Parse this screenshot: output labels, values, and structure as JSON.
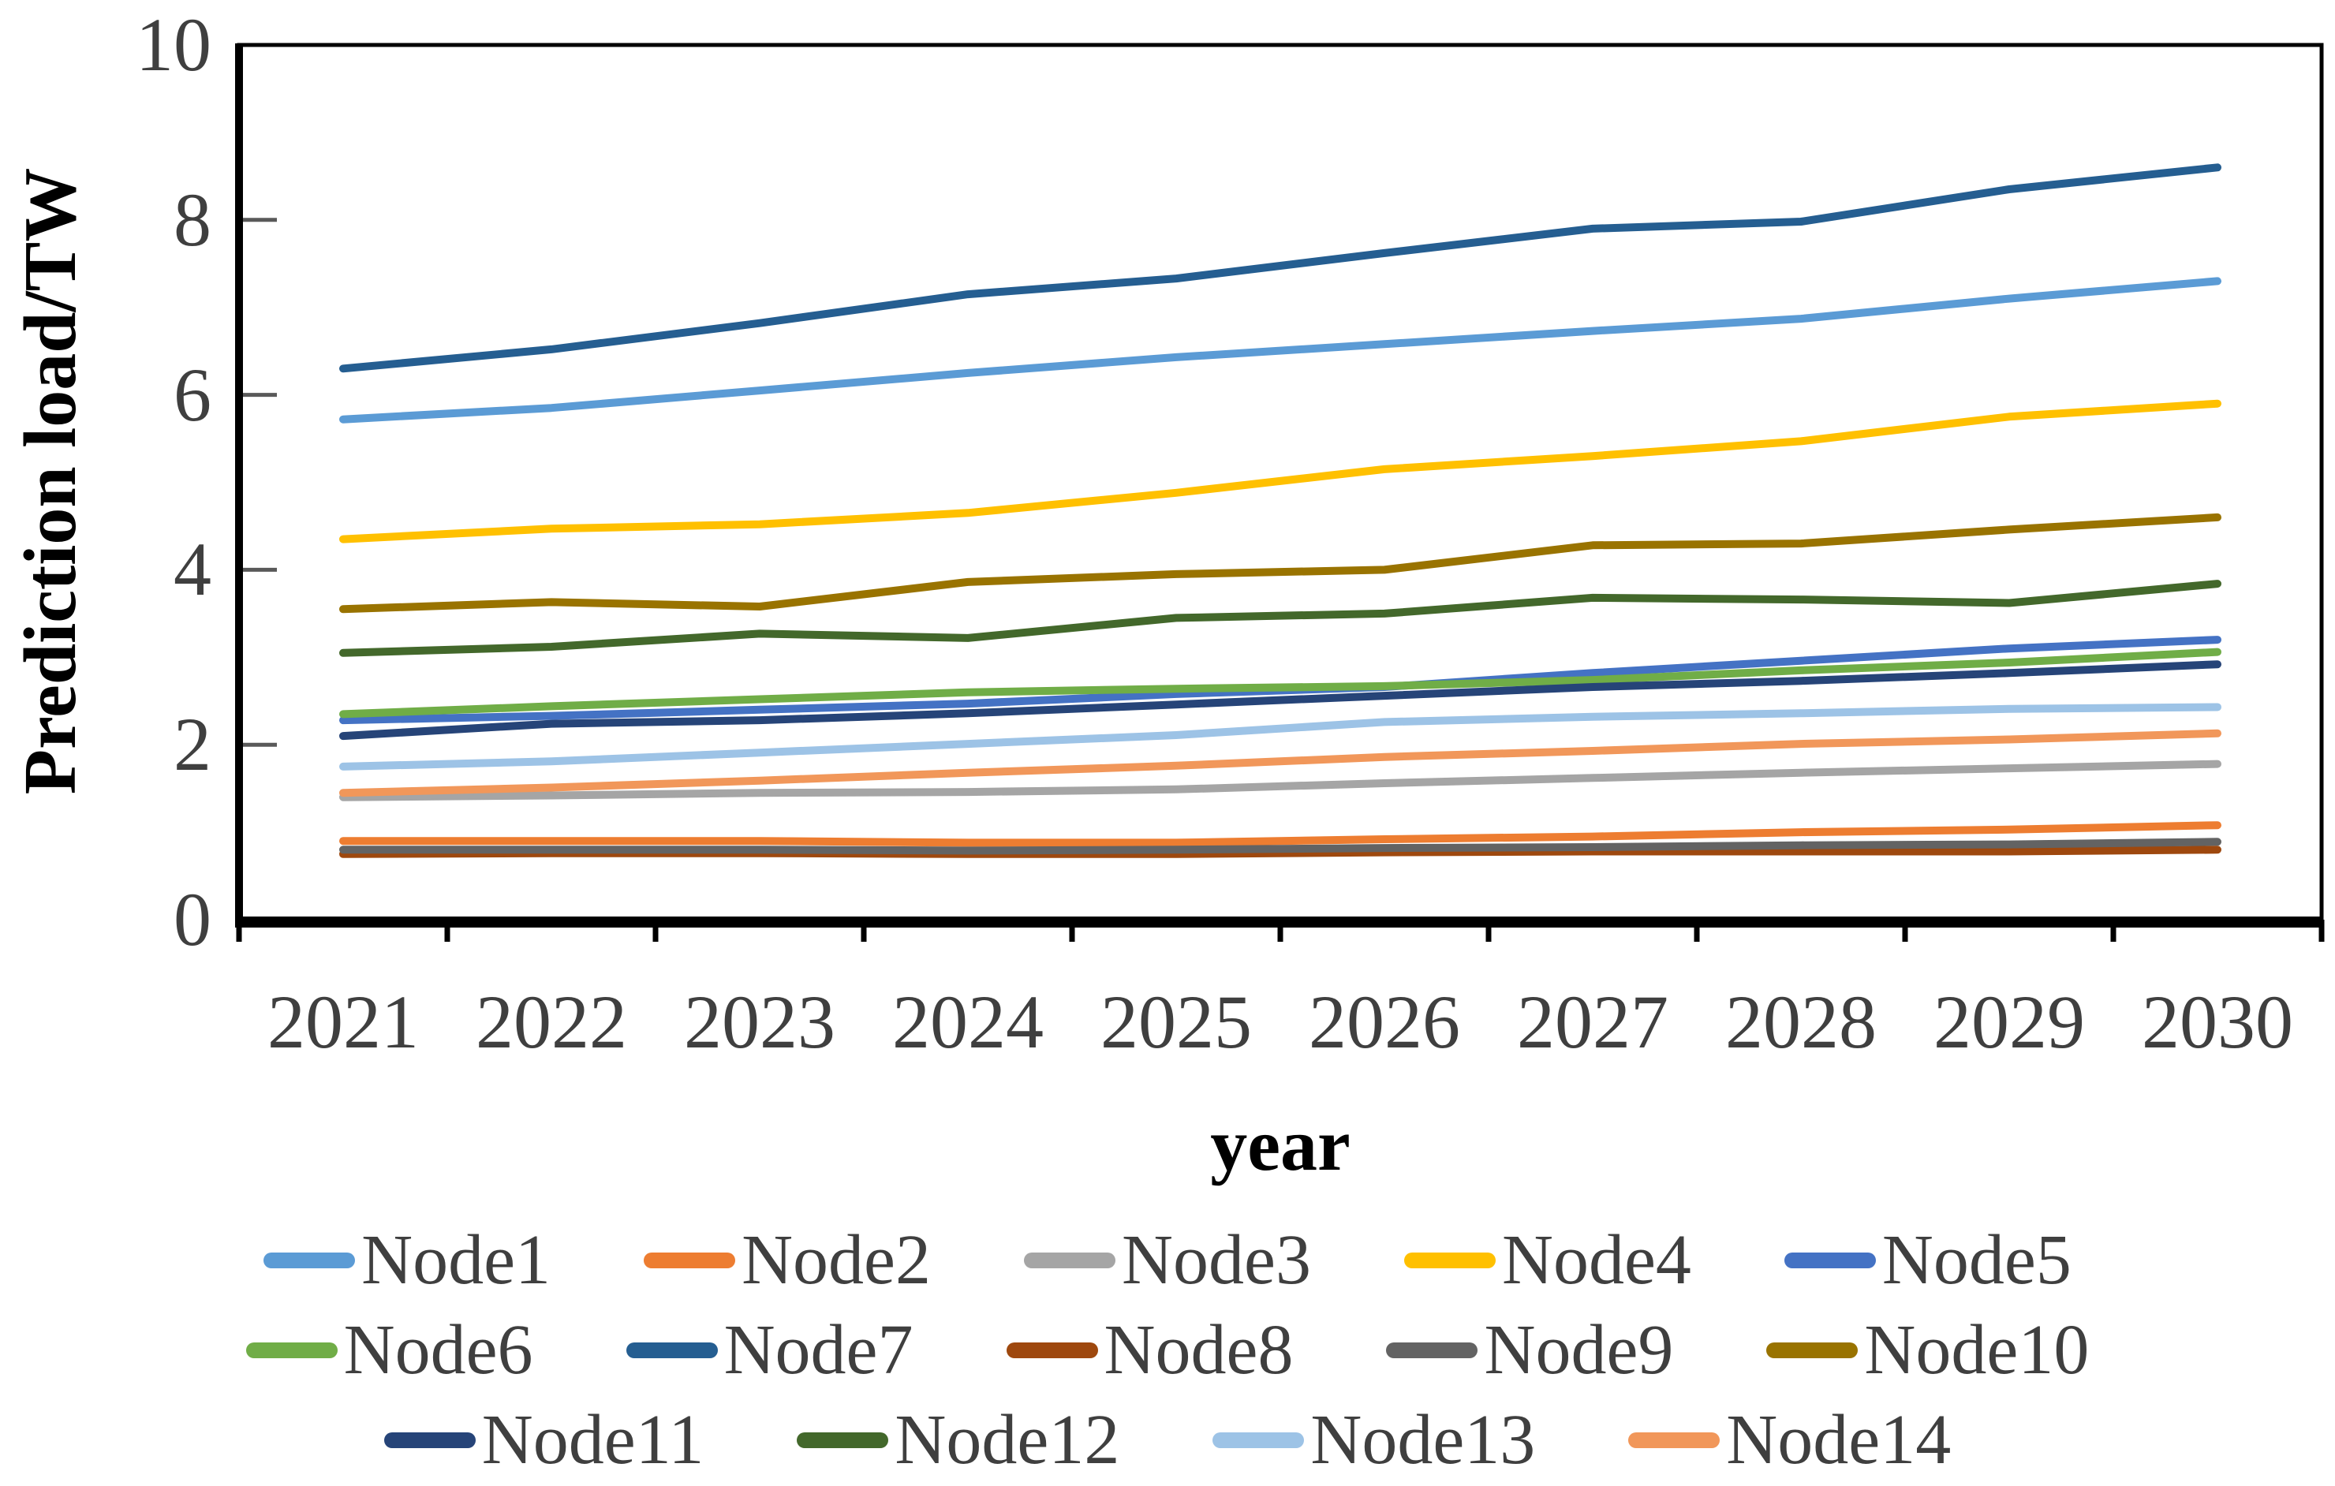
{
  "figure": {
    "y_axis_title": "Prediction load/TW",
    "x_axis_title": "year"
  },
  "chart_data": {
    "type": "line",
    "title": "",
    "xlabel": "year",
    "ylabel": "Prediction load/TW",
    "x": [
      2021,
      2022,
      2023,
      2024,
      2025,
      2026,
      2027,
      2028,
      2029,
      2030
    ],
    "ylim": [
      0,
      10
    ],
    "y_ticks": [
      0,
      2,
      4,
      6,
      8,
      10
    ],
    "grid": false,
    "legend_position": "bottom",
    "legend_rows": [
      5,
      5,
      4
    ],
    "axis_color": "#000000",
    "tick_label_color": "#3f3f3f",
    "series": [
      {
        "name": "Node1",
        "color": "#5B9BD5",
        "values": [
          5.72,
          5.85,
          6.05,
          6.25,
          6.43,
          6.58,
          6.73,
          6.87,
          7.1,
          7.3
        ]
      },
      {
        "name": "Node2",
        "color": "#ED7D31",
        "values": [
          0.9,
          0.9,
          0.9,
          0.88,
          0.88,
          0.92,
          0.95,
          1.0,
          1.03,
          1.08
        ]
      },
      {
        "name": "Node3",
        "color": "#A5A5A5",
        "values": [
          1.4,
          1.42,
          1.45,
          1.46,
          1.49,
          1.56,
          1.62,
          1.68,
          1.73,
          1.78
        ]
      },
      {
        "name": "Node4",
        "color": "#FFC000",
        "values": [
          4.35,
          4.47,
          4.52,
          4.65,
          4.88,
          5.15,
          5.3,
          5.47,
          5.75,
          5.9
        ]
      },
      {
        "name": "Node5",
        "color": "#4472C4",
        "values": [
          2.28,
          2.33,
          2.4,
          2.47,
          2.58,
          2.66,
          2.82,
          2.96,
          3.1,
          3.2
        ]
      },
      {
        "name": "Node6",
        "color": "#70AD47",
        "values": [
          2.35,
          2.44,
          2.52,
          2.6,
          2.64,
          2.67,
          2.74,
          2.85,
          2.94,
          3.06
        ]
      },
      {
        "name": "Node7",
        "color": "#255E91",
        "values": [
          6.3,
          6.52,
          6.82,
          7.15,
          7.33,
          7.62,
          7.9,
          7.98,
          8.35,
          8.6
        ]
      },
      {
        "name": "Node8",
        "color": "#9E480E",
        "values": [
          0.75,
          0.76,
          0.76,
          0.75,
          0.75,
          0.77,
          0.78,
          0.78,
          0.78,
          0.8
        ]
      },
      {
        "name": "Node9",
        "color": "#636363",
        "values": [
          0.8,
          0.8,
          0.8,
          0.79,
          0.8,
          0.82,
          0.83,
          0.85,
          0.86,
          0.89
        ]
      },
      {
        "name": "Node10",
        "color": "#997300",
        "values": [
          3.55,
          3.63,
          3.58,
          3.86,
          3.95,
          4.0,
          4.28,
          4.3,
          4.46,
          4.6
        ]
      },
      {
        "name": "Node11",
        "color": "#264478",
        "values": [
          2.1,
          2.24,
          2.28,
          2.36,
          2.46,
          2.56,
          2.66,
          2.73,
          2.82,
          2.92
        ]
      },
      {
        "name": "Node12",
        "color": "#43682B",
        "values": [
          3.05,
          3.12,
          3.27,
          3.22,
          3.45,
          3.5,
          3.68,
          3.66,
          3.62,
          3.84
        ]
      },
      {
        "name": "Node13",
        "color": "#9DC3E6",
        "values": [
          1.75,
          1.81,
          1.91,
          2.01,
          2.11,
          2.26,
          2.32,
          2.36,
          2.41,
          2.43
        ]
      },
      {
        "name": "Node14",
        "color": "#F1975A",
        "values": [
          1.45,
          1.51,
          1.59,
          1.68,
          1.76,
          1.86,
          1.93,
          2.01,
          2.06,
          2.13
        ]
      }
    ]
  }
}
